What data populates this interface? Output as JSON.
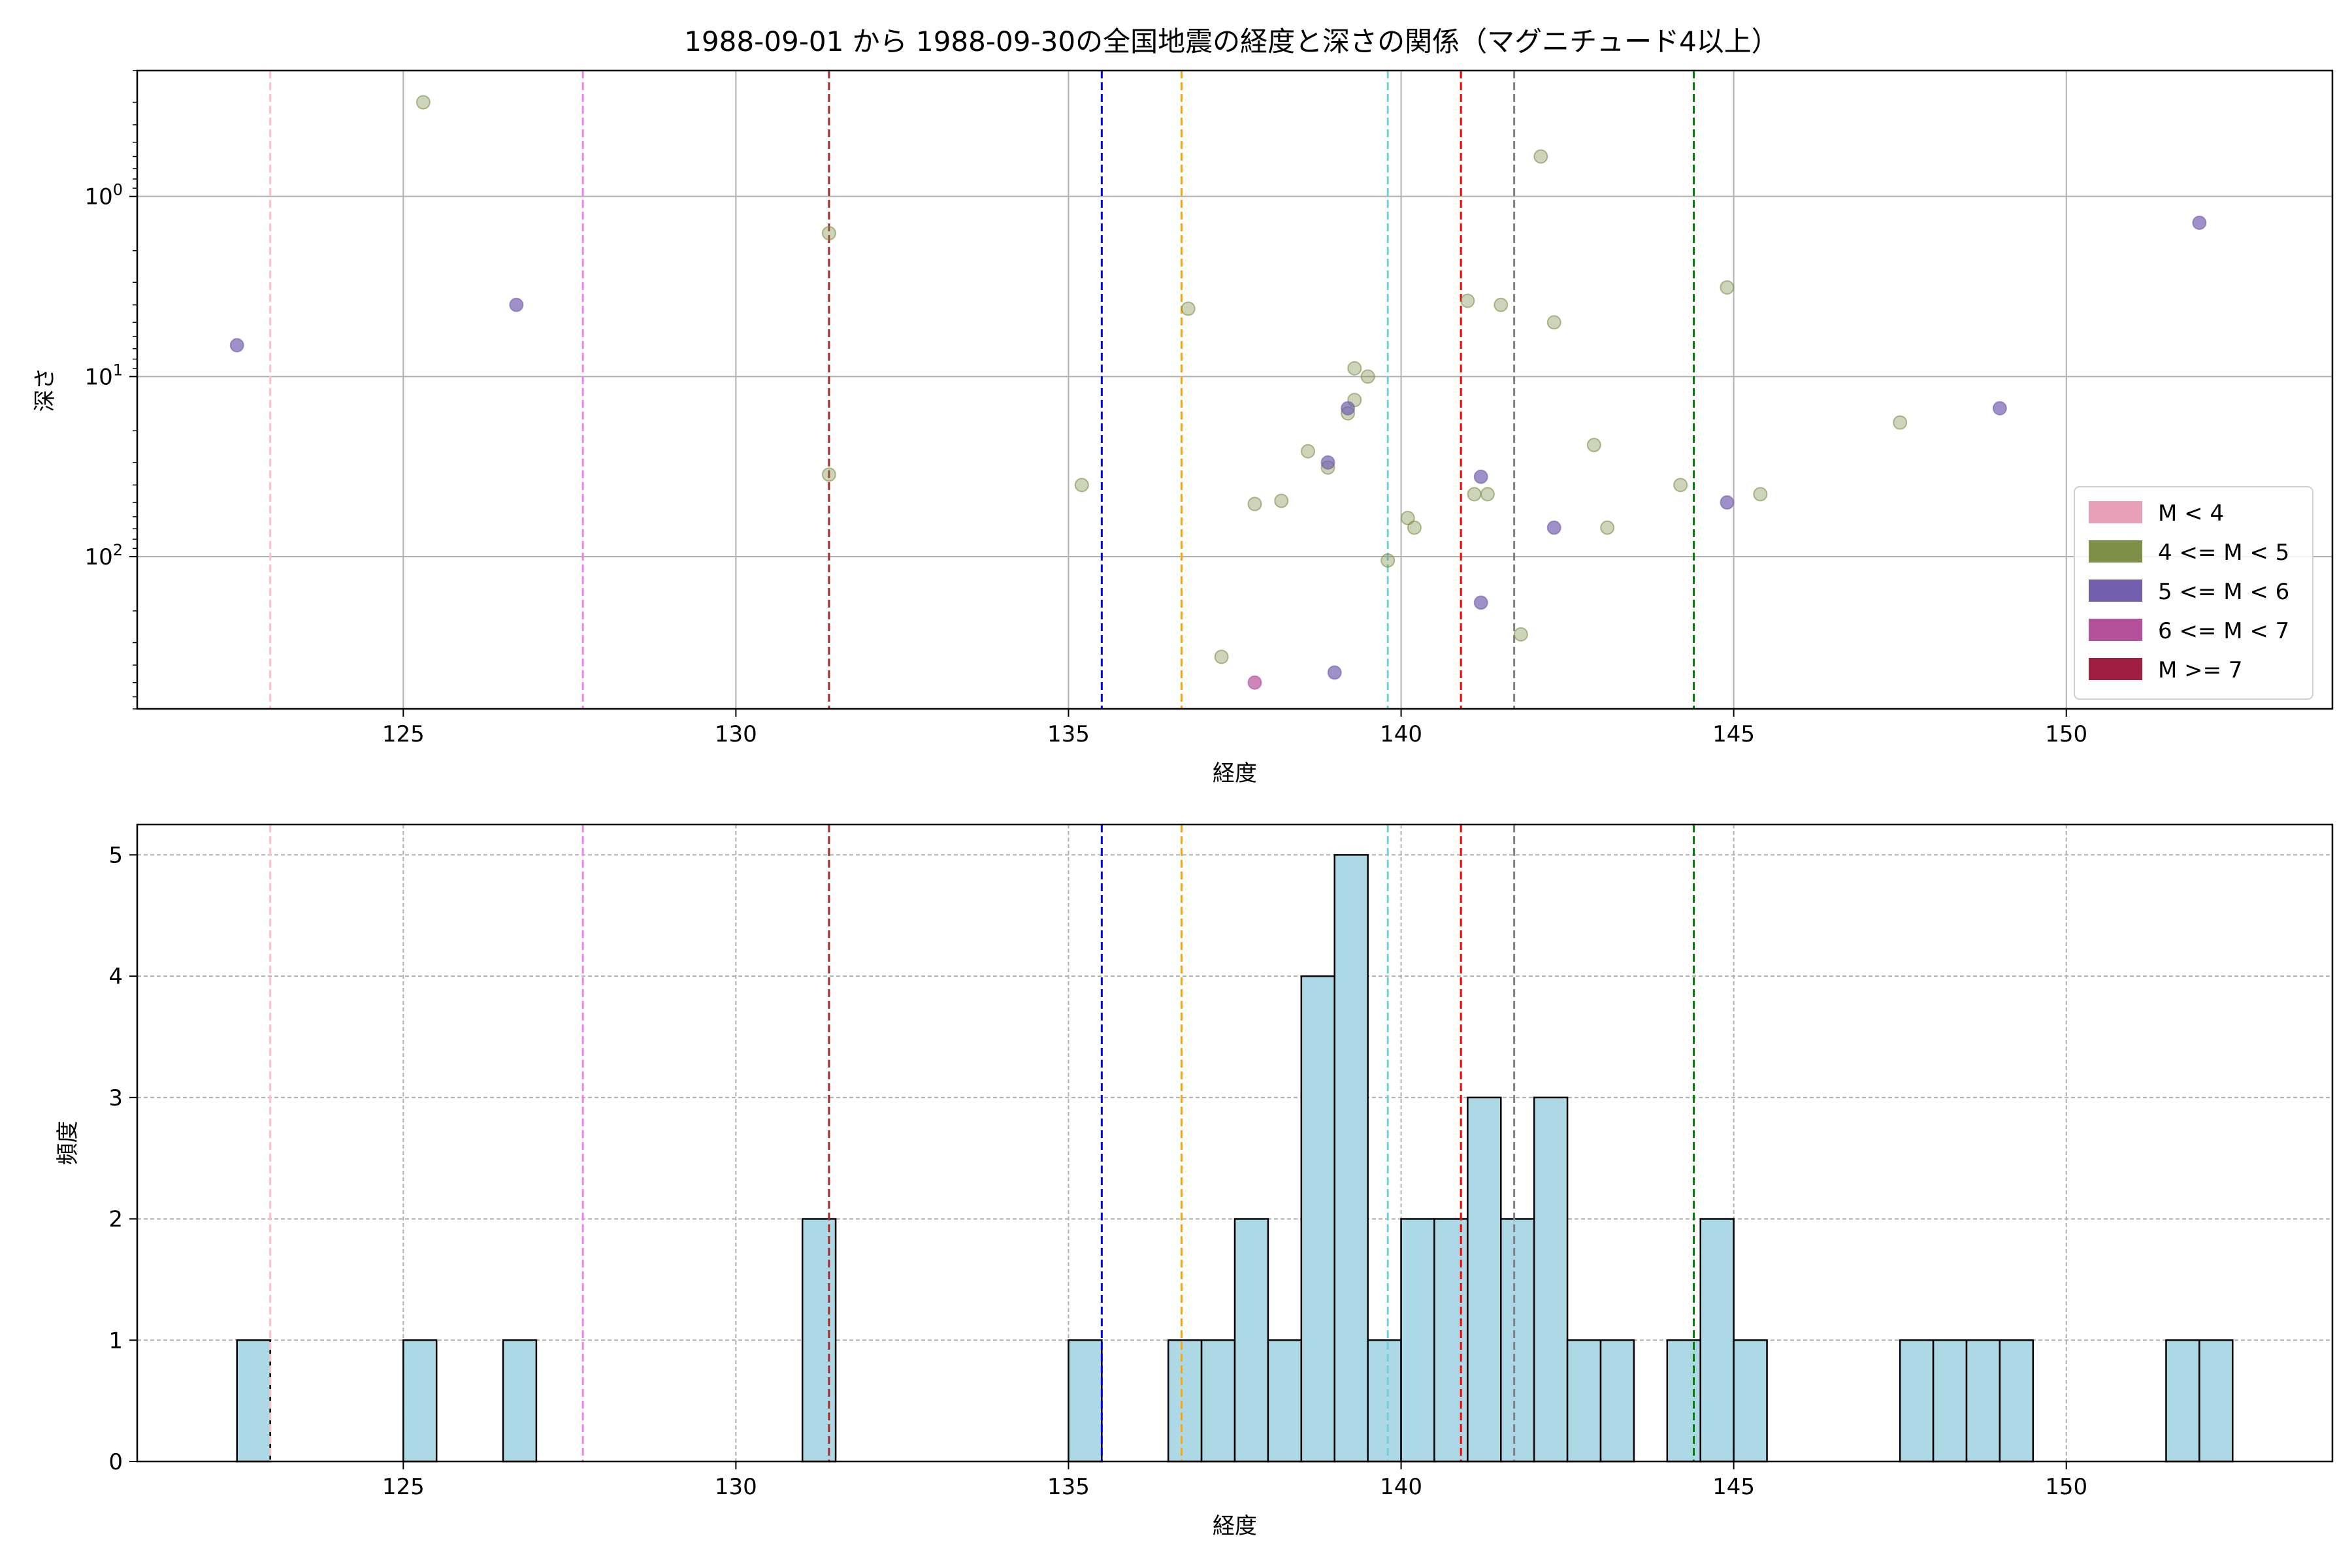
{
  "title": "1988-09-01 から 1988-09-30の全国地震の経度と深さの関係（マグニチュード4以上）",
  "chart_data": [
    {
      "type": "scatter",
      "xlabel": "経度",
      "ylabel": "深さ",
      "xlim": [
        121.0,
        154.0
      ],
      "ylim": [
        700,
        0.2
      ],
      "y_scale": "log",
      "y_inverted": true,
      "grid": true,
      "x_ticks": [
        125,
        130,
        135,
        140,
        145,
        150
      ],
      "y_ticks": [
        {
          "value": 1,
          "label_base": "10",
          "label_exp": "0"
        },
        {
          "value": 10,
          "label_base": "10",
          "label_exp": "1"
        },
        {
          "value": 100,
          "label_base": "10",
          "label_exp": "2"
        }
      ],
      "legend": {
        "position": "lower-right",
        "entries": [
          {
            "label": "M < 4",
            "color": "#e8a0b8"
          },
          {
            "label": "4 <= M < 5",
            "color": "#7e8f47"
          },
          {
            "label": "5 <= M < 6",
            "color": "#735fad"
          },
          {
            "label": "6 <= M < 7",
            "color": "#b5509b"
          },
          {
            "label": "M >= 7",
            "color": "#a01e40"
          }
        ]
      },
      "series": [
        {
          "name": "4 <= M < 5",
          "color": "#7e8f47",
          "points": [
            [
              125.3,
              0.3
            ],
            [
              131.4,
              1.6
            ],
            [
              131.4,
              35
            ],
            [
              135.2,
              40
            ],
            [
              136.8,
              4.2
            ],
            [
              137.3,
              360
            ],
            [
              137.8,
              51
            ],
            [
              138.2,
              49
            ],
            [
              138.6,
              26
            ],
            [
              138.9,
              32
            ],
            [
              139.2,
              16
            ],
            [
              139.3,
              13.5
            ],
            [
              139.3,
              9
            ],
            [
              139.5,
              10
            ],
            [
              139.8,
              105
            ],
            [
              140.1,
              61
            ],
            [
              140.2,
              69
            ],
            [
              141.0,
              3.8
            ],
            [
              141.1,
              45
            ],
            [
              141.3,
              45
            ],
            [
              141.5,
              4
            ],
            [
              141.8,
              270
            ],
            [
              142.1,
              0.6
            ],
            [
              142.3,
              5
            ],
            [
              142.9,
              24
            ],
            [
              143.1,
              69
            ],
            [
              144.2,
              40
            ],
            [
              144.9,
              3.2
            ],
            [
              145.4,
              45
            ],
            [
              147.5,
              18
            ]
          ]
        },
        {
          "name": "5 <= M < 6",
          "color": "#735fad",
          "points": [
            [
              122.5,
              6.7
            ],
            [
              126.7,
              4
            ],
            [
              138.9,
              30
            ],
            [
              139.0,
              440
            ],
            [
              139.2,
              15
            ],
            [
              141.2,
              36
            ],
            [
              141.2,
              180
            ],
            [
              142.3,
              69
            ],
            [
              144.9,
              50
            ],
            [
              149.0,
              15
            ],
            [
              152.0,
              1.4
            ]
          ]
        },
        {
          "name": "6 <= M < 7",
          "color": "#b5509b",
          "points": [
            [
              137.8,
              500
            ]
          ]
        }
      ],
      "vlines": [
        {
          "x": 123.0,
          "color": "#ffc0cb"
        },
        {
          "x": 127.7,
          "color": "#ee82ee"
        },
        {
          "x": 131.4,
          "color": "#a52a2a"
        },
        {
          "x": 135.5,
          "color": "#0000ff"
        },
        {
          "x": 136.7,
          "color": "#ffa500"
        },
        {
          "x": 139.8,
          "color": "#6fd0dc"
        },
        {
          "x": 140.9,
          "color": "#ff0000"
        },
        {
          "x": 141.7,
          "color": "#808080"
        },
        {
          "x": 144.4,
          "color": "#008000"
        }
      ]
    },
    {
      "type": "bar",
      "xlabel": "経度",
      "ylabel": "頻度",
      "xlim": [
        121.0,
        154.0
      ],
      "ylim": [
        0,
        5.25
      ],
      "grid": true,
      "x_ticks": [
        125,
        130,
        135,
        140,
        145,
        150
      ],
      "y_ticks": [
        0,
        1,
        2,
        3,
        4,
        5
      ],
      "bar_color": "#add8e6",
      "bins": [
        {
          "x0": 122.5,
          "x1": 123.0,
          "count": 1
        },
        {
          "x0": 125.0,
          "x1": 125.5,
          "count": 1
        },
        {
          "x0": 126.5,
          "x1": 127.0,
          "count": 1
        },
        {
          "x0": 131.0,
          "x1": 131.5,
          "count": 2
        },
        {
          "x0": 135.0,
          "x1": 135.5,
          "count": 1
        },
        {
          "x0": 136.5,
          "x1": 137.0,
          "count": 1
        },
        {
          "x0": 137.0,
          "x1": 137.5,
          "count": 1
        },
        {
          "x0": 137.5,
          "x1": 138.0,
          "count": 2
        },
        {
          "x0": 138.0,
          "x1": 138.5,
          "count": 1
        },
        {
          "x0": 138.5,
          "x1": 139.0,
          "count": 4
        },
        {
          "x0": 139.0,
          "x1": 139.5,
          "count": 5
        },
        {
          "x0": 139.5,
          "x1": 140.0,
          "count": 1
        },
        {
          "x0": 140.0,
          "x1": 140.5,
          "count": 2
        },
        {
          "x0": 140.5,
          "x1": 141.0,
          "count": 2
        },
        {
          "x0": 141.0,
          "x1": 141.5,
          "count": 3
        },
        {
          "x0": 141.5,
          "x1": 142.0,
          "count": 2
        },
        {
          "x0": 142.0,
          "x1": 142.5,
          "count": 3
        },
        {
          "x0": 142.5,
          "x1": 143.0,
          "count": 1
        },
        {
          "x0": 143.0,
          "x1": 143.5,
          "count": 1
        },
        {
          "x0": 144.0,
          "x1": 144.5,
          "count": 1
        },
        {
          "x0": 144.5,
          "x1": 145.0,
          "count": 2
        },
        {
          "x0": 145.0,
          "x1": 145.5,
          "count": 1
        },
        {
          "x0": 147.5,
          "x1": 148.0,
          "count": 1
        },
        {
          "x0": 148.0,
          "x1": 148.5,
          "count": 1
        },
        {
          "x0": 148.5,
          "x1": 149.0,
          "count": 1
        },
        {
          "x0": 149.0,
          "x1": 149.5,
          "count": 1
        },
        {
          "x0": 151.5,
          "x1": 152.0,
          "count": 1
        },
        {
          "x0": 152.0,
          "x1": 152.5,
          "count": 1
        }
      ],
      "vlines": [
        {
          "x": 123.0,
          "color": "#ffc0cb"
        },
        {
          "x": 127.7,
          "color": "#ee82ee"
        },
        {
          "x": 131.4,
          "color": "#a52a2a"
        },
        {
          "x": 135.5,
          "color": "#0000ff"
        },
        {
          "x": 136.7,
          "color": "#ffa500"
        },
        {
          "x": 139.8,
          "color": "#6fd0dc"
        },
        {
          "x": 140.9,
          "color": "#ff0000"
        },
        {
          "x": 141.7,
          "color": "#808080"
        },
        {
          "x": 144.4,
          "color": "#008000"
        }
      ]
    }
  ]
}
